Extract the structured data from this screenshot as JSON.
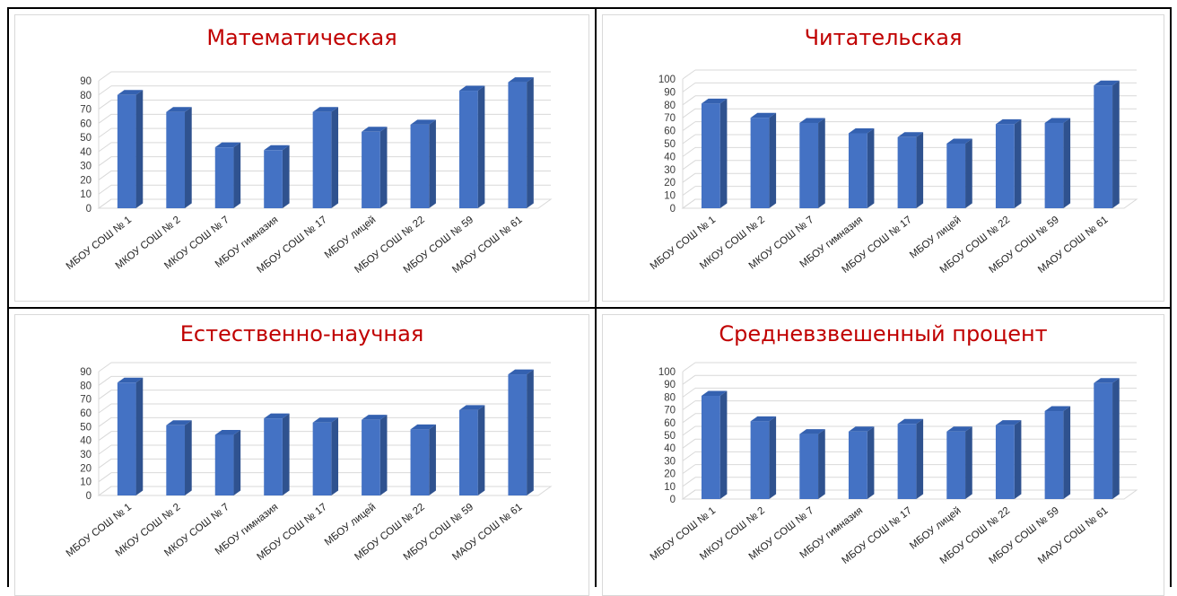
{
  "chart_data": [
    {
      "type": "bar",
      "title": "Математическая",
      "categories": [
        "МБОУ СОШ № 1",
        "МКОУ СОШ № 2",
        "МКОУ СОШ № 7",
        "МБОУ гимназия",
        "МБОУ СОШ № 17",
        "МБОУ лицей",
        "МБОУ СОШ № 22",
        "МБОУ СОШ № 59",
        "МАОУ СОШ № 61"
      ],
      "values": [
        80,
        68,
        43,
        41,
        68,
        54,
        59,
        83,
        89
      ],
      "ylim": [
        0,
        90
      ],
      "ytick_step": 10,
      "yticks": [
        "0",
        "10",
        "20",
        "30",
        "40",
        "50",
        "60",
        "70",
        "80",
        "90"
      ],
      "grid": true,
      "bar_color": "#4472c4"
    },
    {
      "type": "bar",
      "title": "Читательская",
      "categories": [
        "МБОУ СОШ № 1",
        "МКОУ СОШ № 2",
        "МКОУ СОШ № 7",
        "МБОУ гимназия",
        "МБОУ СОШ № 17",
        "МБОУ лицей",
        "МБОУ СОШ № 22",
        "МБОУ СОШ № 59",
        "МАОУ СОШ № 61"
      ],
      "values": [
        81,
        70,
        66,
        58,
        55,
        50,
        65,
        66,
        95
      ],
      "ylim": [
        0,
        100
      ],
      "ytick_step": 10,
      "yticks": [
        "0",
        "10",
        "20",
        "30",
        "40",
        "50",
        "60",
        "70",
        "80",
        "90",
        "100"
      ],
      "grid": true,
      "bar_color": "#4472c4"
    },
    {
      "type": "bar",
      "title": "Естественно-научная",
      "categories": [
        "МБОУ СОШ № 1",
        "МКОУ СОШ № 2",
        "МКОУ СОШ № 7",
        "МБОУ гимназия",
        "МБОУ СОШ № 17",
        "МБОУ лицей",
        "МБОУ СОШ № 22",
        "МБОУ СОШ № 59",
        "МАОУ СОШ № 61"
      ],
      "values": [
        82,
        51,
        44,
        56,
        53,
        55,
        48,
        62,
        88
      ],
      "ylim": [
        0,
        90
      ],
      "ytick_step": 10,
      "yticks": [
        "0",
        "10",
        "20",
        "30",
        "40",
        "50",
        "60",
        "70",
        "80",
        "90"
      ],
      "grid": true,
      "bar_color": "#4472c4"
    },
    {
      "type": "bar",
      "title": "Средневзвешенный процент",
      "categories": [
        "МБОУ СОШ № 1",
        "МКОУ СОШ № 2",
        "МКОУ СОШ № 7",
        "МБОУ гимназия",
        "МБОУ СОШ № 17",
        "МБОУ лицей",
        "МБОУ СОШ № 22",
        "МБОУ СОШ № 59",
        "МАОУ СОШ № 61"
      ],
      "values": [
        81,
        61,
        51,
        53,
        59,
        53,
        58,
        69,
        91
      ],
      "ylim": [
        0,
        100
      ],
      "ytick_step": 10,
      "yticks": [
        "0",
        "10",
        "20",
        "30",
        "40",
        "50",
        "60",
        "70",
        "80",
        "90",
        "100"
      ],
      "grid": true,
      "bar_color": "#4472c4"
    }
  ]
}
